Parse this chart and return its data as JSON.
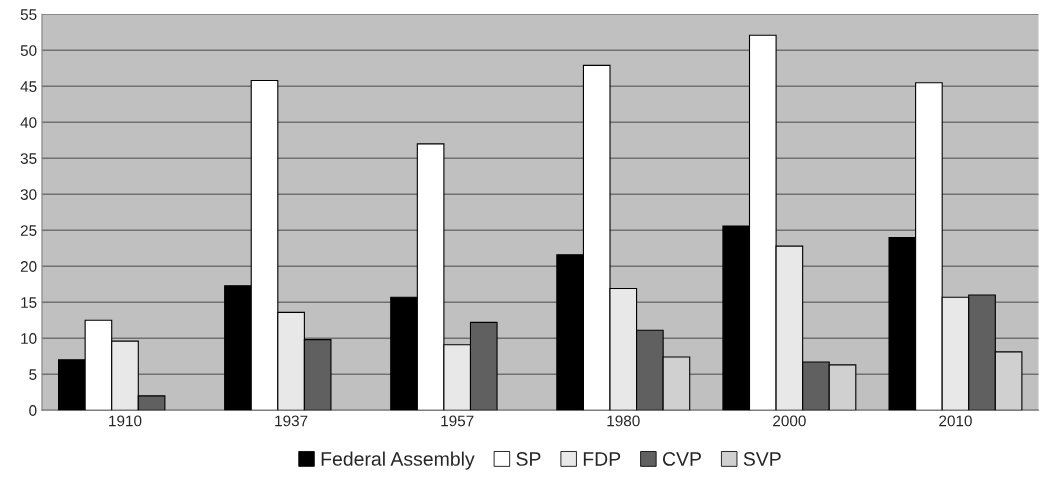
{
  "chart_data": {
    "type": "bar",
    "categories": [
      "1910",
      "1937",
      "1957",
      "1980",
      "2000",
      "2010"
    ],
    "series": [
      {
        "name": "Federal Assembly",
        "color": "#000000",
        "values": [
          7,
          17.3,
          15.7,
          21.6,
          25.6,
          24
        ]
      },
      {
        "name": "SP",
        "color": "#ffffff",
        "values": [
          12.5,
          45.8,
          37,
          47.9,
          52.1,
          45.5
        ]
      },
      {
        "name": "FDP",
        "color": "#e8e8e8",
        "values": [
          9.6,
          13.6,
          9.1,
          16.9,
          22.8,
          15.7
        ]
      },
      {
        "name": "CVP",
        "color": "#606060",
        "values": [
          2,
          9.8,
          12.2,
          11.1,
          6.7,
          16
        ]
      },
      {
        "name": "SVP",
        "color": "#d0d0d0",
        "values": [
          null,
          null,
          null,
          7.4,
          6.3,
          8.1
        ]
      }
    ],
    "ylim": [
      0,
      55
    ],
    "yticks": [
      0,
      5,
      10,
      15,
      20,
      25,
      30,
      35,
      40,
      45,
      50,
      55
    ],
    "grid": "y",
    "legend": "bottom"
  }
}
